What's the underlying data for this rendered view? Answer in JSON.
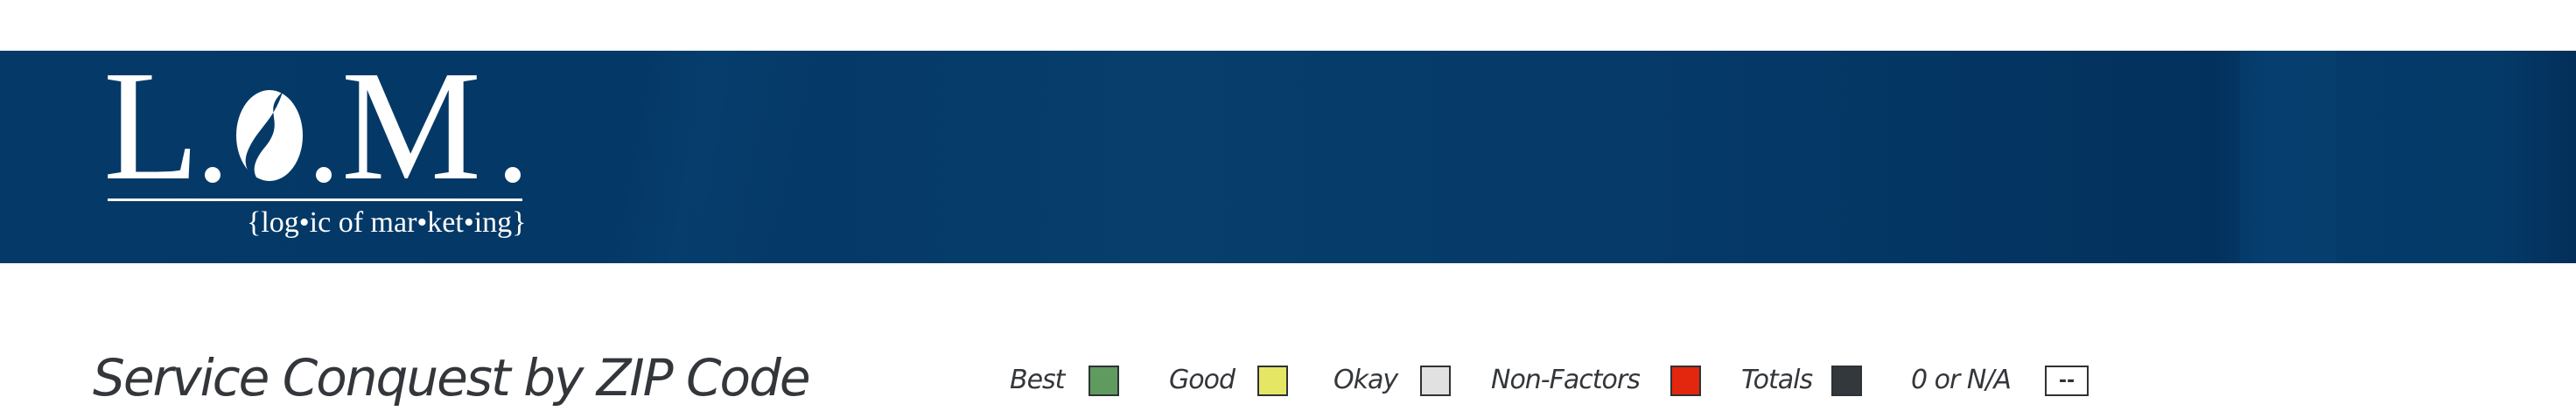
{
  "logo": {
    "letters": "L.O.M.",
    "tagline": "{log•ic of mar•ket•ing}"
  },
  "page": {
    "title": "Service Conquest by ZIP Code"
  },
  "legend": [
    {
      "label": "Best",
      "color": "#5f9a5f",
      "swatch_text": ""
    },
    {
      "label": "Good",
      "color": "#e6e665",
      "swatch_text": ""
    },
    {
      "label": "Okay",
      "color": "#e1e1e1",
      "swatch_text": ""
    },
    {
      "label": "Non-Factors",
      "color": "#e3260e",
      "swatch_text": ""
    },
    {
      "label": "Totals",
      "color": "#33383c",
      "swatch_text": ""
    },
    {
      "label": "0 or N/A",
      "color": "#ffffff",
      "swatch_text": "--"
    }
  ]
}
